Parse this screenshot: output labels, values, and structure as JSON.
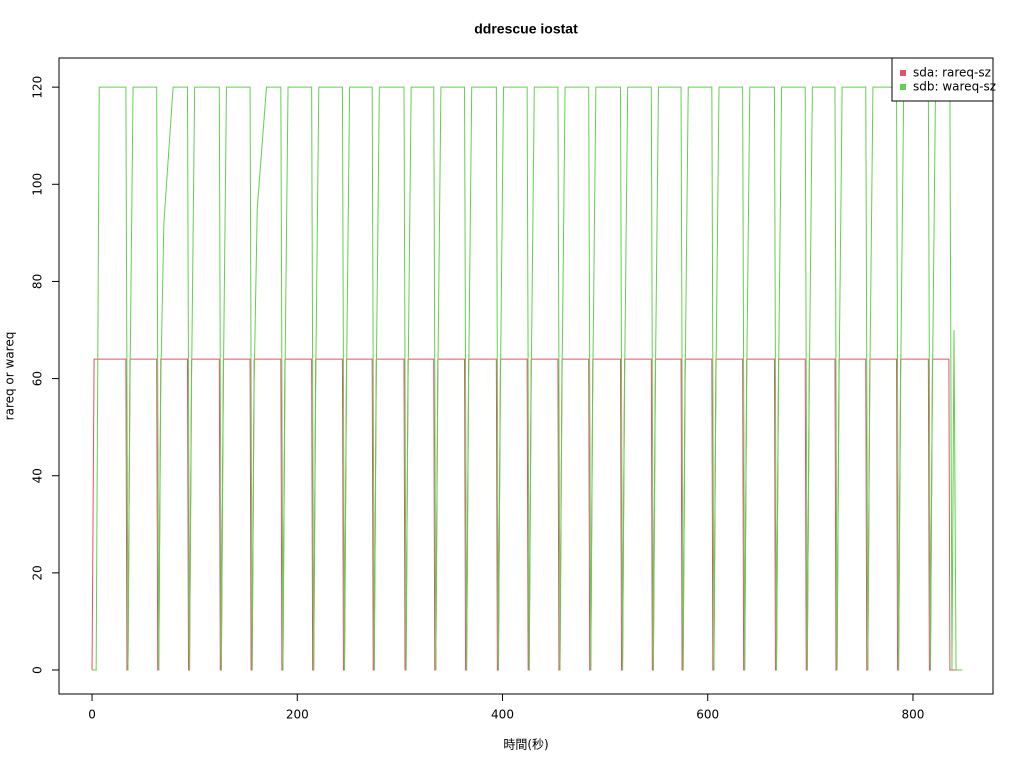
{
  "chart_data": {
    "type": "line",
    "title": "ddrescue iostat",
    "x_label": "時間(秒)",
    "y_label": "rareq or wareq",
    "xlim": [
      -32.2,
      878
    ],
    "ylim": [
      -4.94,
      126
    ],
    "xticks": [
      0,
      200,
      400,
      600,
      800
    ],
    "yticks": [
      0,
      20,
      40,
      60,
      80,
      100,
      120
    ],
    "legend": "top-right",
    "grid": false,
    "x": [
      0,
      2,
      4,
      7,
      20,
      33,
      34,
      35,
      37,
      40,
      49,
      63,
      64,
      65,
      67,
      70,
      79,
      93,
      94,
      95,
      97,
      100,
      109,
      124,
      125,
      126,
      128,
      131,
      140,
      154,
      155,
      156,
      158,
      161,
      170,
      184,
      185,
      186,
      188,
      191,
      200,
      214,
      215,
      216,
      218,
      221,
      230,
      244,
      245,
      246,
      248,
      251,
      260,
      273,
      274,
      275,
      277,
      280,
      289,
      304,
      305,
      306,
      308,
      311,
      320,
      333,
      334,
      335,
      337,
      340,
      349,
      363,
      364,
      365,
      367,
      370,
      379,
      394,
      395,
      396,
      398,
      401,
      410,
      424,
      425,
      426,
      428,
      431,
      440,
      454,
      455,
      456,
      458,
      461,
      470,
      484,
      485,
      486,
      488,
      491,
      500,
      515,
      516,
      517,
      519,
      522,
      531,
      545,
      546,
      547,
      549,
      552,
      561,
      574,
      575,
      576,
      578,
      581,
      590,
      604,
      605,
      606,
      608,
      611,
      620,
      634,
      635,
      636,
      638,
      641,
      650,
      665,
      666,
      667,
      669,
      672,
      681,
      695,
      696,
      697,
      699,
      702,
      711,
      724,
      725,
      726,
      728,
      731,
      740,
      754,
      755,
      756,
      758,
      761,
      770,
      784,
      785,
      786,
      788,
      791,
      800,
      815,
      816,
      817,
      819,
      822,
      831,
      835,
      836,
      838,
      840,
      842,
      848
    ],
    "series": [
      {
        "name": "sda: rareq-sz",
        "color": "#DF536B",
        "values": [
          0,
          64,
          64,
          64,
          64,
          64,
          0,
          0,
          64,
          64,
          64,
          64,
          0,
          0,
          64,
          64,
          64,
          64,
          0,
          0,
          64,
          64,
          64,
          64,
          0,
          0,
          64,
          64,
          64,
          64,
          0,
          0,
          64,
          64,
          64,
          64,
          0,
          0,
          64,
          64,
          64,
          64,
          0,
          0,
          64,
          64,
          64,
          64,
          0,
          0,
          64,
          64,
          64,
          64,
          0,
          0,
          64,
          64,
          64,
          64,
          0,
          0,
          64,
          64,
          64,
          64,
          0,
          0,
          64,
          64,
          64,
          64,
          0,
          0,
          64,
          64,
          64,
          64,
          0,
          0,
          64,
          64,
          64,
          64,
          0,
          0,
          64,
          64,
          64,
          64,
          0,
          0,
          64,
          64,
          64,
          64,
          0,
          0,
          64,
          64,
          64,
          64,
          0,
          0,
          64,
          64,
          64,
          64,
          0,
          0,
          64,
          64,
          64,
          64,
          0,
          0,
          64,
          64,
          64,
          64,
          0,
          0,
          64,
          64,
          64,
          64,
          0,
          0,
          64,
          64,
          64,
          64,
          0,
          0,
          64,
          64,
          64,
          64,
          0,
          0,
          64,
          64,
          64,
          64,
          0,
          0,
          64,
          64,
          64,
          64,
          0,
          0,
          64,
          64,
          64,
          64,
          0,
          0,
          64,
          64,
          64,
          64,
          0,
          0,
          64,
          64,
          64,
          64,
          0,
          0,
          0,
          0,
          0
        ]
      },
      {
        "name": "sdb: wareq-sz",
        "color": "#61D04F",
        "values": [
          0,
          0,
          0,
          120,
          120,
          120,
          60,
          0,
          60,
          120,
          120,
          120,
          60,
          0,
          60,
          92,
          120,
          120,
          60,
          0,
          60,
          120,
          120,
          120,
          60,
          0,
          60,
          120,
          120,
          120,
          60,
          0,
          60,
          95,
          120,
          120,
          60,
          0,
          60,
          120,
          120,
          120,
          60,
          0,
          60,
          120,
          120,
          120,
          60,
          0,
          60,
          120,
          120,
          120,
          60,
          0,
          60,
          120,
          120,
          120,
          60,
          0,
          60,
          120,
          120,
          120,
          60,
          0,
          60,
          120,
          120,
          120,
          60,
          0,
          60,
          120,
          120,
          120,
          60,
          0,
          60,
          120,
          120,
          120,
          60,
          0,
          60,
          120,
          120,
          120,
          60,
          0,
          60,
          120,
          120,
          120,
          60,
          0,
          60,
          120,
          120,
          120,
          60,
          0,
          60,
          120,
          120,
          120,
          60,
          0,
          60,
          120,
          120,
          120,
          60,
          0,
          60,
          120,
          120,
          120,
          60,
          0,
          60,
          120,
          120,
          120,
          60,
          0,
          60,
          120,
          120,
          120,
          60,
          0,
          60,
          120,
          120,
          120,
          60,
          0,
          60,
          120,
          120,
          120,
          60,
          0,
          60,
          120,
          120,
          120,
          60,
          0,
          60,
          120,
          120,
          120,
          60,
          0,
          60,
          120,
          120,
          120,
          60,
          0,
          60,
          120,
          120,
          120,
          120,
          0,
          70,
          0,
          0
        ]
      }
    ]
  }
}
